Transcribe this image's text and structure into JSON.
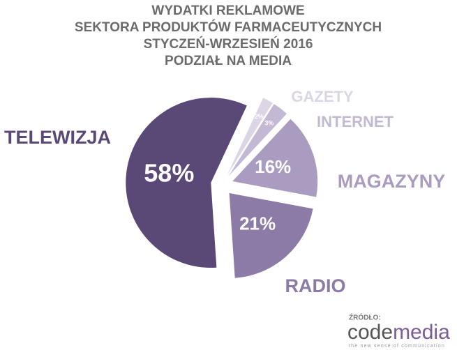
{
  "chart_data": {
    "type": "pie",
    "title": [
      "WYDATKI REKLAMOWE",
      "SEKTORA PRODUKTÓW FARMACEUTYCZNYCH",
      "STYCZEŃ-WRZESIEŃ 2016",
      "PODZIAŁ NA MEDIA"
    ],
    "categories": [
      "GAZETY",
      "INTERNET",
      "MAGAZYNY",
      "RADIO",
      "TELEWIZJA"
    ],
    "values": [
      2,
      3,
      16,
      21,
      58
    ],
    "value_labels": [
      "2%",
      "3%",
      "16%",
      "21%",
      "58%"
    ],
    "colors": [
      "#dcd5e6",
      "#c4b9d4",
      "#aa9cc0",
      "#8c7ba6",
      "#5a4877"
    ],
    "source": {
      "label": "ŹRÓDŁO:",
      "logo": [
        "code",
        "media"
      ],
      "tagline": "the new sense of communication"
    }
  }
}
